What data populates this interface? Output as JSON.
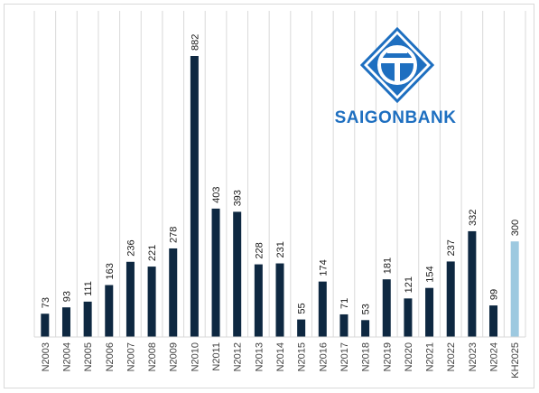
{
  "brand": {
    "name": "SAIGONBANK",
    "logo_icon": "saigonbank-logo-icon",
    "color": "#1e6fc0"
  },
  "chart_data": {
    "type": "bar",
    "title": "",
    "xlabel": "",
    "ylabel": "",
    "grid": "vertical-category-lines",
    "categories": [
      "N2003",
      "N2004",
      "N2005",
      "N2006",
      "N2007",
      "N2008",
      "N2009",
      "N2010",
      "N2011",
      "N2012",
      "N2013",
      "N2014",
      "N2015",
      "N2016",
      "N2017",
      "N2018",
      "N2019",
      "N2020",
      "N2021",
      "N2022",
      "N2023",
      "N2024",
      "KH2025"
    ],
    "values": [
      73,
      93,
      111,
      163,
      236,
      221,
      278,
      882,
      403,
      393,
      228,
      231,
      55,
      174,
      71,
      53,
      181,
      121,
      154,
      237,
      332,
      99,
      300
    ],
    "data_labels": [
      "73",
      "93",
      "111",
      "163",
      "236",
      "221",
      "278",
      "882",
      "403",
      "393",
      "228",
      "231",
      "55",
      "174",
      "71",
      "53",
      "181",
      "121",
      "154",
      "237",
      "332",
      "99",
      "300"
    ],
    "colors": {
      "actual": "#0e2841",
      "plan": "#9dc9e0",
      "gridline": "#d9d9d9"
    },
    "highlight_category": "KH2025",
    "ylim": [
      0,
      900
    ]
  }
}
